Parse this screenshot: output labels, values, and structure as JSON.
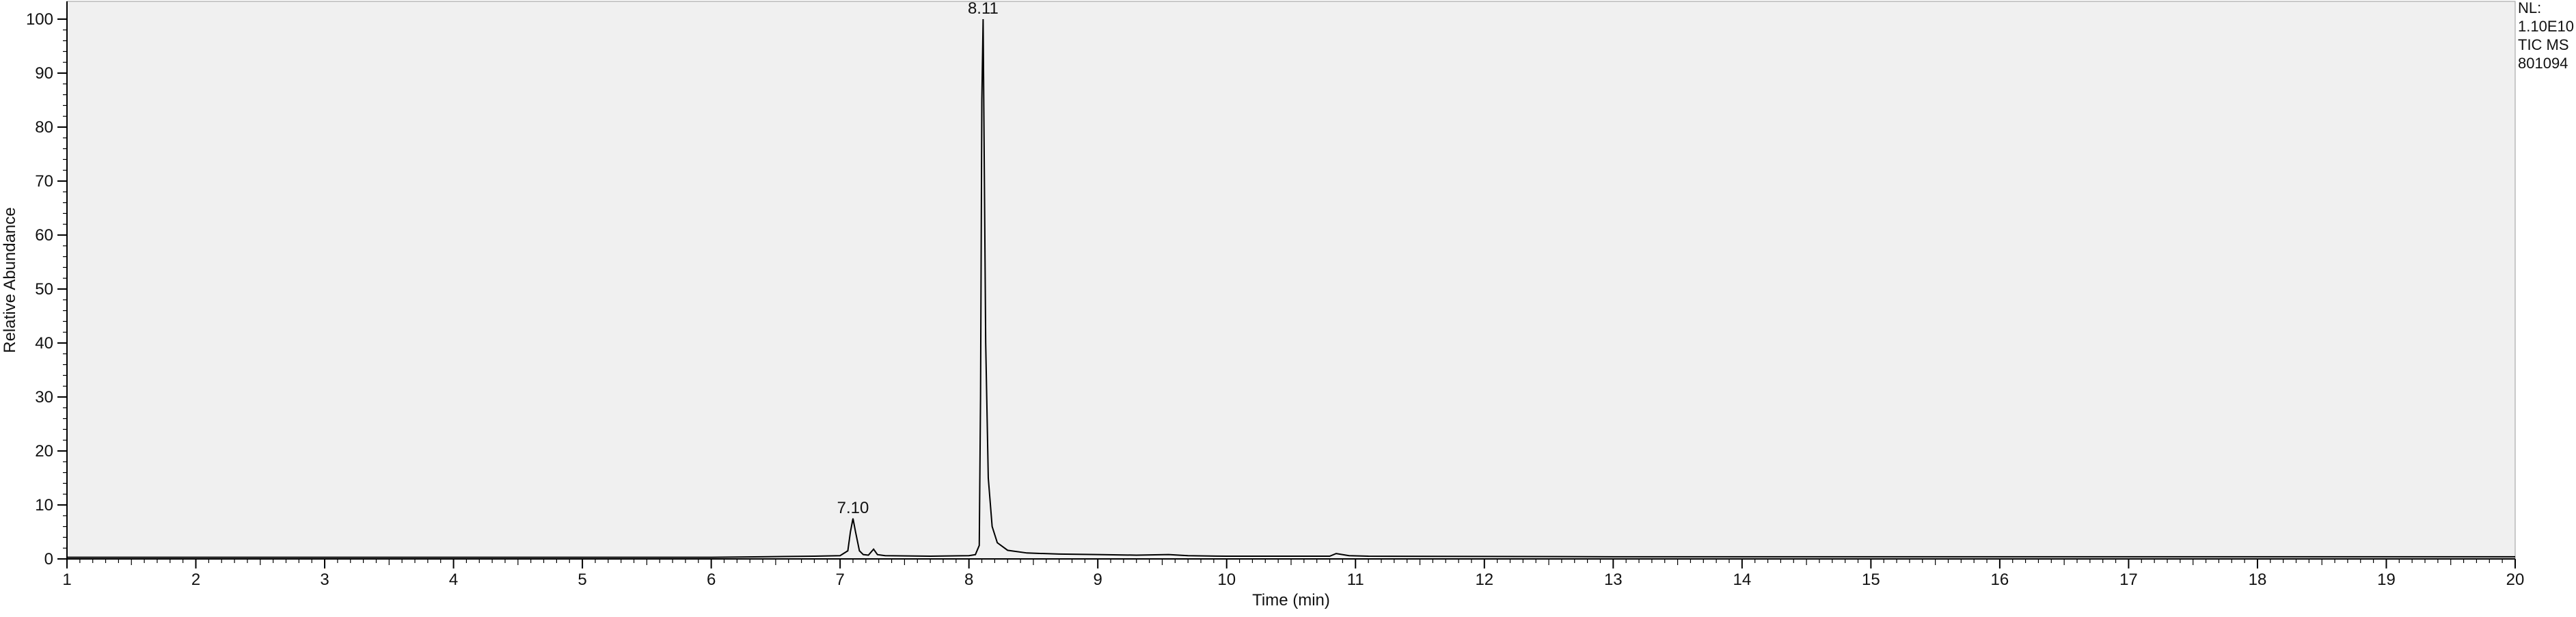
{
  "chart_data": {
    "type": "line",
    "title": "",
    "xlabel": "Time (min)",
    "ylabel": "Relative Abundance",
    "xlim": [
      1,
      20
    ],
    "ylim": [
      0,
      100
    ],
    "x_ticks": [
      "1",
      "2",
      "3",
      "4",
      "5",
      "6",
      "7",
      "8",
      "9",
      "10",
      "11",
      "12",
      "13",
      "14",
      "15",
      "16",
      "17",
      "18",
      "19",
      "20"
    ],
    "y_ticks": [
      "0",
      "10",
      "20",
      "30",
      "40",
      "50",
      "60",
      "70",
      "80",
      "90",
      "100"
    ],
    "grid": false,
    "background_color": "#f0f0f0",
    "line_color": "#000000",
    "series": [
      {
        "points": [
          [
            1.0,
            0.3
          ],
          [
            3.0,
            0.3
          ],
          [
            5.0,
            0.3
          ],
          [
            6.0,
            0.3
          ],
          [
            6.4,
            0.4
          ],
          [
            6.8,
            0.5
          ],
          [
            7.0,
            0.6
          ],
          [
            7.06,
            1.5
          ],
          [
            7.08,
            5.0
          ],
          [
            7.1,
            7.5
          ],
          [
            7.12,
            5.0
          ],
          [
            7.15,
            1.5
          ],
          [
            7.18,
            0.8
          ],
          [
            7.22,
            0.7
          ],
          [
            7.26,
            1.8
          ],
          [
            7.29,
            0.8
          ],
          [
            7.35,
            0.6
          ],
          [
            7.7,
            0.5
          ],
          [
            8.0,
            0.6
          ],
          [
            8.05,
            0.8
          ],
          [
            8.08,
            2.5
          ],
          [
            8.09,
            30.0
          ],
          [
            8.1,
            85.0
          ],
          [
            8.11,
            100.0
          ],
          [
            8.12,
            70.0
          ],
          [
            8.13,
            40.0
          ],
          [
            8.15,
            15.0
          ],
          [
            8.18,
            6.0
          ],
          [
            8.22,
            3.0
          ],
          [
            8.3,
            1.6
          ],
          [
            8.45,
            1.1
          ],
          [
            8.7,
            0.9
          ],
          [
            9.0,
            0.8
          ],
          [
            9.3,
            0.7
          ],
          [
            9.55,
            0.8
          ],
          [
            9.7,
            0.6
          ],
          [
            10.0,
            0.5
          ],
          [
            10.8,
            0.5
          ],
          [
            10.85,
            1.0
          ],
          [
            10.95,
            0.6
          ],
          [
            11.1,
            0.5
          ],
          [
            13.0,
            0.4
          ],
          [
            16.0,
            0.4
          ],
          [
            20.0,
            0.4
          ]
        ]
      }
    ],
    "peak_labels": [
      {
        "x": 8.11,
        "y": 100,
        "text": "8.11"
      },
      {
        "x": 7.1,
        "y": 7.5,
        "text": "7.10"
      }
    ],
    "annotation_lines": [
      "NL:",
      "1.10E10",
      "TIC  MS",
      "801094"
    ]
  }
}
